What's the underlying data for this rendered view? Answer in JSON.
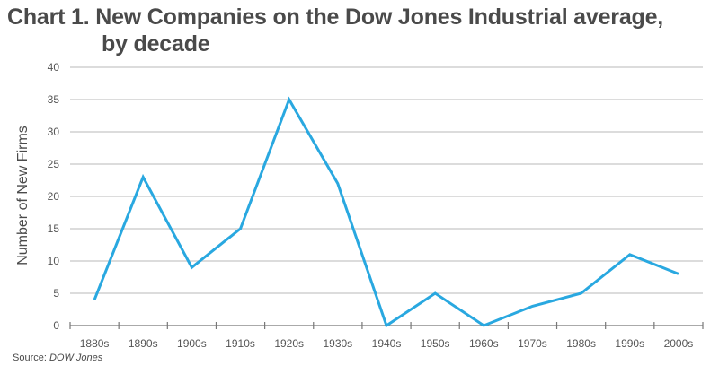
{
  "chart_data": {
    "type": "line",
    "title": "Chart 1. New Companies on the Dow Jones Industrial average,",
    "title_line2": "by decade",
    "xlabel": "",
    "ylabel": "Number of New Firms",
    "categories": [
      "1880s",
      "1890s",
      "1900s",
      "1910s",
      "1920s",
      "1930s",
      "1940s",
      "1950s",
      "1960s",
      "1970s",
      "1980s",
      "1990s",
      "2000s"
    ],
    "series": [
      {
        "name": "New Firms",
        "values": [
          4,
          23,
          9,
          15,
          35,
          22,
          0,
          5,
          0,
          3,
          5,
          11,
          8
        ],
        "color": "#29a8e0"
      }
    ],
    "ylim": [
      0,
      40
    ],
    "yticks": [
      0,
      5,
      10,
      15,
      20,
      25,
      30,
      35,
      40
    ],
    "grid": true,
    "legend": "none"
  },
  "source": {
    "label": "Source:",
    "value": "DOW Jones"
  }
}
